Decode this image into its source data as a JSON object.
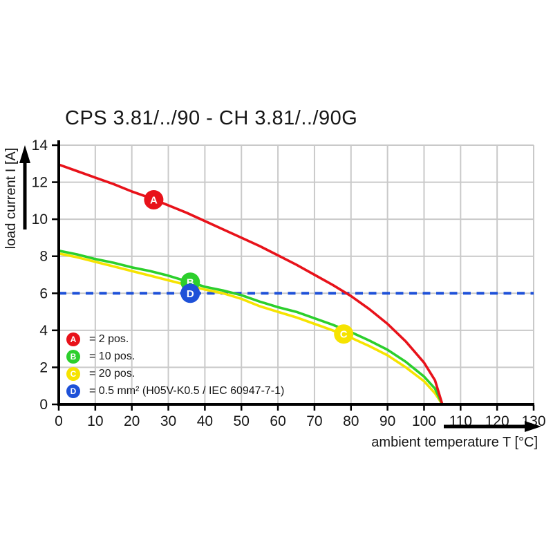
{
  "chart_data": {
    "type": "line",
    "title": "CPS 3.81/../90 - CH 3.81/../90G",
    "xlabel": "ambient temperature T [°C]",
    "ylabel": "load current I [A]",
    "xlim": [
      0,
      130
    ],
    "ylim": [
      0,
      14
    ],
    "x_ticks": [
      0,
      10,
      20,
      30,
      40,
      50,
      60,
      70,
      80,
      90,
      100,
      110,
      120,
      130
    ],
    "y_ticks": [
      0,
      2,
      4,
      6,
      8,
      10,
      12,
      14
    ],
    "grid": true,
    "grid_color": "#c9c9c9",
    "axis_color": "#000000",
    "series": [
      {
        "name": "A",
        "label": "= 2 pos.",
        "color": "#e8121a",
        "style": "solid",
        "points": [
          [
            0,
            12.95
          ],
          [
            5,
            12.6
          ],
          [
            10,
            12.25
          ],
          [
            15,
            11.9
          ],
          [
            20,
            11.5
          ],
          [
            25,
            11.15
          ],
          [
            30,
            10.75
          ],
          [
            35,
            10.35
          ],
          [
            40,
            9.9
          ],
          [
            45,
            9.45
          ],
          [
            50,
            9.0
          ],
          [
            55,
            8.55
          ],
          [
            60,
            8.05
          ],
          [
            65,
            7.55
          ],
          [
            70,
            7.0
          ],
          [
            75,
            6.45
          ],
          [
            80,
            5.85
          ],
          [
            85,
            5.15
          ],
          [
            90,
            4.35
          ],
          [
            95,
            3.4
          ],
          [
            100,
            2.25
          ],
          [
            103,
            1.3
          ],
          [
            105,
            0
          ]
        ]
      },
      {
        "name": "B",
        "label": "= 10 pos.",
        "color": "#2ccf2c",
        "style": "solid",
        "points": [
          [
            0,
            8.3
          ],
          [
            5,
            8.1
          ],
          [
            10,
            7.85
          ],
          [
            15,
            7.65
          ],
          [
            20,
            7.4
          ],
          [
            25,
            7.2
          ],
          [
            30,
            6.95
          ],
          [
            35,
            6.65
          ],
          [
            40,
            6.35
          ],
          [
            45,
            6.15
          ],
          [
            50,
            5.9
          ],
          [
            55,
            5.55
          ],
          [
            60,
            5.25
          ],
          [
            65,
            5.0
          ],
          [
            70,
            4.65
          ],
          [
            75,
            4.3
          ],
          [
            80,
            3.9
          ],
          [
            85,
            3.45
          ],
          [
            90,
            2.95
          ],
          [
            95,
            2.3
          ],
          [
            100,
            1.5
          ],
          [
            103,
            0.85
          ],
          [
            105,
            0
          ]
        ]
      },
      {
        "name": "C",
        "label": "= 20 pos.",
        "color": "#f6e300",
        "style": "solid",
        "points": [
          [
            0,
            8.15
          ],
          [
            5,
            7.95
          ],
          [
            10,
            7.7
          ],
          [
            15,
            7.45
          ],
          [
            20,
            7.2
          ],
          [
            25,
            6.95
          ],
          [
            30,
            6.7
          ],
          [
            35,
            6.45
          ],
          [
            40,
            6.2
          ],
          [
            45,
            6.0
          ],
          [
            50,
            5.7
          ],
          [
            55,
            5.3
          ],
          [
            60,
            5.0
          ],
          [
            65,
            4.7
          ],
          [
            70,
            4.35
          ],
          [
            75,
            4.0
          ],
          [
            80,
            3.6
          ],
          [
            85,
            3.15
          ],
          [
            90,
            2.65
          ],
          [
            95,
            2.0
          ],
          [
            100,
            1.25
          ],
          [
            103,
            0.6
          ],
          [
            105,
            0
          ]
        ]
      },
      {
        "name": "D",
        "label": "= 0.5 mm² (H05V-K0.5 / IEC 60947-7-1)",
        "color": "#1e51d8",
        "style": "dashed",
        "points": [
          [
            0,
            6
          ],
          [
            130,
            6
          ]
        ]
      }
    ],
    "markers": [
      {
        "letter": "A",
        "x": 26,
        "y": 11.05,
        "color": "#e8121a",
        "text_color": "#ffffff"
      },
      {
        "letter": "B",
        "x": 36,
        "y": 6.6,
        "color": "#2ccf2c",
        "text_color": "#ffffff"
      },
      {
        "letter": "D",
        "x": 36,
        "y": 6.0,
        "color": "#1e51d8",
        "text_color": "#ffffff"
      },
      {
        "letter": "C",
        "x": 78,
        "y": 3.8,
        "color": "#f6e300",
        "text_color": "#ffffff"
      }
    ]
  }
}
